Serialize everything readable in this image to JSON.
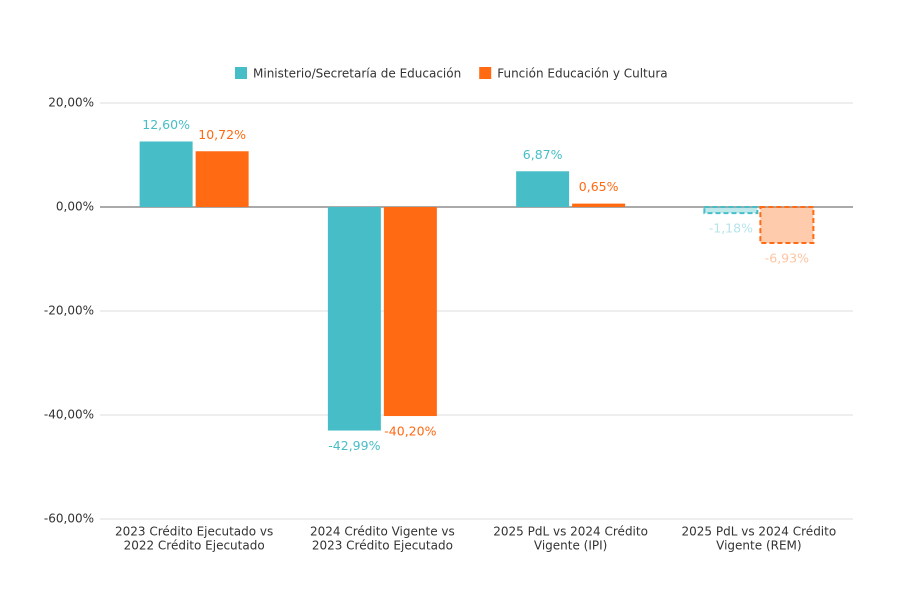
{
  "chart_data": {
    "type": "bar",
    "categories": [
      [
        "2023 Crédito Ejecutado vs",
        "2022 Crédito Ejecutado"
      ],
      [
        "2024 Crédito Vigente vs",
        "2023 Crédito Ejecutado"
      ],
      [
        "2025 PdL vs 2024 Crédito",
        "Vigente (IPI)"
      ],
      [
        "2025 PdL vs 2024 Crédito",
        "Vigente (REM)"
      ]
    ],
    "series": [
      {
        "name": "Ministerio/Secretaría de Educación",
        "color": "#47bec7",
        "values": [
          12.6,
          -42.99,
          6.87,
          -1.18
        ],
        "value_labels": [
          "12,60%",
          "-42,99%",
          "6,87%",
          "-1,18%"
        ]
      },
      {
        "name": "Función Educación y Cultura",
        "color": "#ff6a13",
        "values": [
          10.72,
          -40.2,
          0.65,
          -6.93
        ],
        "value_labels": [
          "10,72%",
          "-40,20%",
          "0,65%",
          "-6,93%"
        ]
      }
    ],
    "dashed": [
      false,
      false,
      false,
      true
    ],
    "ylim": [
      -60,
      20
    ],
    "yticks": [
      {
        "value": -60,
        "label": "-60,00%"
      },
      {
        "value": -40,
        "label": "-40,00%"
      },
      {
        "value": -20,
        "label": "-20,00%"
      },
      {
        "value": 0,
        "label": "0,00%"
      },
      {
        "value": 20,
        "label": "20,00%"
      }
    ],
    "grid": true,
    "legend": "top"
  }
}
